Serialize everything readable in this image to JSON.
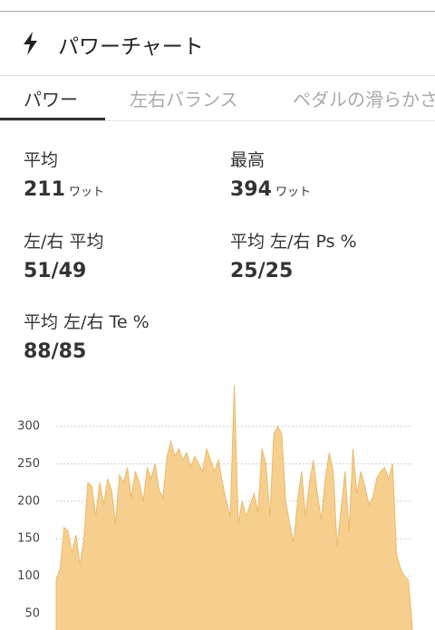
{
  "header": {
    "title": "パワーチャート"
  },
  "tabs": [
    "パワー",
    "左右バランス",
    "ペダルの滑らかさ"
  ],
  "stats": [
    {
      "label": "平均",
      "value": 211,
      "unit": "ワット"
    },
    {
      "label": "最高",
      "value": 394,
      "unit": "ワット"
    },
    {
      "label": "左/右 平均",
      "value": "51/49"
    },
    {
      "label": "平均 左/右 Ps %",
      "value": "25/25"
    },
    {
      "label": "平均 左/右 Te %",
      "value": "88/85"
    }
  ],
  "chart_data": {
    "type": "area",
    "color": "#f6cf8e",
    "ylim": [
      0,
      350
    ],
    "yticks": [
      50,
      100,
      150,
      200,
      250,
      300
    ],
    "grid": true,
    "values": [
      95,
      110,
      165,
      160,
      130,
      155,
      115,
      150,
      225,
      220,
      180,
      225,
      195,
      230,
      215,
      170,
      235,
      225,
      245,
      205,
      240,
      225,
      200,
      245,
      230,
      250,
      215,
      205,
      260,
      280,
      260,
      270,
      255,
      265,
      245,
      260,
      250,
      240,
      270,
      255,
      240,
      255,
      225,
      200,
      180,
      355,
      170,
      200,
      180,
      195,
      210,
      185,
      270,
      250,
      180,
      290,
      300,
      290,
      200,
      170,
      145,
      200,
      240,
      180,
      225,
      255,
      210,
      175,
      230,
      265,
      240,
      140,
      190,
      240,
      160,
      270,
      210,
      240,
      220,
      195,
      205,
      230,
      240,
      245,
      230,
      250,
      130,
      110,
      100,
      95,
      30
    ]
  }
}
